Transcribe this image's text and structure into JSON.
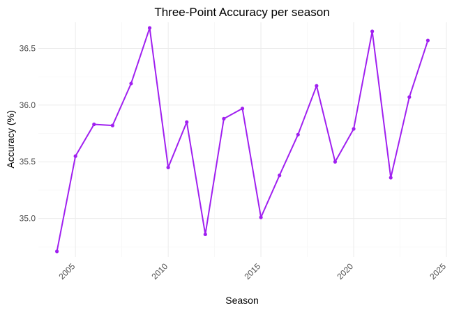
{
  "chart_data": {
    "type": "line",
    "title": "Three-Point Accuracy per season",
    "xlabel": "Season",
    "ylabel": "Accuracy (%)",
    "x_ticks": [
      2005,
      2010,
      2015,
      2020,
      2025
    ],
    "y_ticks": [
      35.0,
      35.5,
      36.0,
      36.5
    ],
    "y_tick_labels": [
      "35.0",
      "35.5",
      "36.0",
      "36.5"
    ],
    "xlim": [
      2003.0,
      2025.0
    ],
    "ylim": [
      34.66,
      36.73
    ],
    "grid": true,
    "line_color": "#a020f0",
    "series": [
      {
        "x": [
          2004,
          2005,
          2006,
          2007,
          2008,
          2009,
          2010,
          2011,
          2012,
          2013,
          2014,
          2015,
          2016,
          2017,
          2018,
          2019,
          2020,
          2021,
          2022,
          2023,
          2024
        ],
        "values": [
          34.71,
          35.55,
          35.83,
          35.82,
          36.19,
          36.68,
          35.45,
          35.85,
          34.86,
          35.88,
          35.97,
          35.01,
          35.38,
          35.74,
          36.17,
          35.5,
          35.79,
          36.65,
          35.36,
          36.07,
          36.57
        ]
      }
    ]
  }
}
